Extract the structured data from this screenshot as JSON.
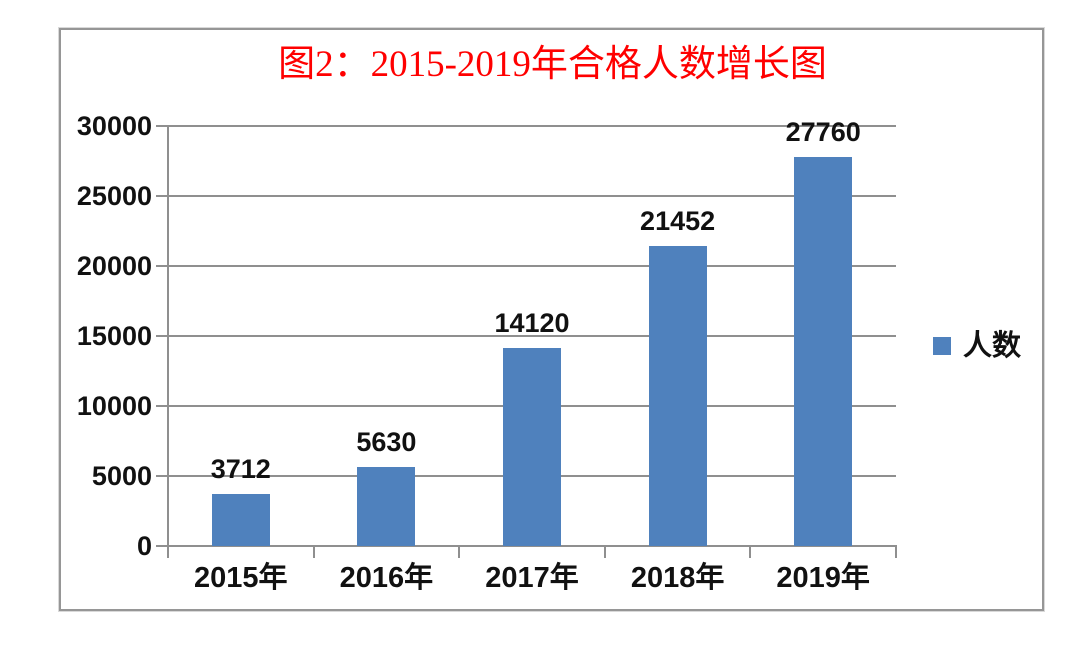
{
  "chart_data": {
    "type": "bar",
    "title": "图2：2015-2019年合格人数增长图",
    "categories": [
      "2015年",
      "2016年",
      "2017年",
      "2018年",
      "2019年"
    ],
    "series": [
      {
        "name": "人数",
        "values": [
          3712,
          5630,
          14120,
          21452,
          27760
        ]
      }
    ],
    "data_labels": [
      "3712",
      "5630",
      "14120",
      "21452",
      "27760"
    ],
    "xlabel": "",
    "ylabel": "",
    "ylim": [
      0,
      30000
    ],
    "ytick_step": 5000,
    "y_ticks": [
      0,
      5000,
      10000,
      15000,
      20000,
      25000,
      30000
    ],
    "grid": true,
    "legend_position": "right",
    "colors": {
      "bar": "#4F81BD",
      "grid": "#8F8F8F",
      "axis": "#8F8F8F",
      "title": "#FF0000",
      "text": "#111111",
      "frame": "#969696"
    }
  }
}
